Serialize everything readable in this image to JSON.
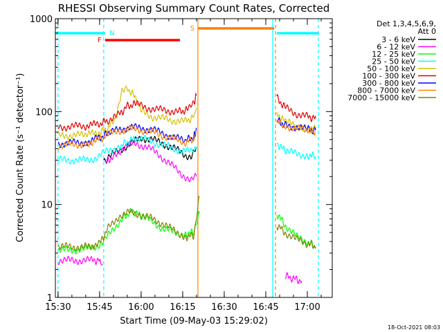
{
  "chart_data": {
    "type": "line",
    "title": "RHESSI Observing Summary Count Rates, Corrected",
    "xlabel": "Start Time (09-May-03 15:29:02)",
    "ylabel": "Corrected Count Rate (s⁻¹ detector⁻¹)",
    "yscale": "log",
    "ylim": [
      1,
      1000
    ],
    "xlim": [
      "15:29:02",
      "17:09:00"
    ],
    "x_tick_labels": [
      "15:30",
      "15:45",
      "16:00",
      "16:15",
      "16:30",
      "16:45",
      "17:00"
    ],
    "x_tick_values": [
      "15:30",
      "15:45",
      "16:00",
      "16:15",
      "16:30",
      "16:45",
      "17:00"
    ],
    "y_tick_labels": [
      "1",
      "10",
      "100",
      "1000"
    ],
    "y_tick_values": [
      1,
      10,
      100,
      1000
    ],
    "legend": {
      "placement": "outside-right",
      "header_lines": [
        "Det 1,3,4,5,6,9,",
        "Att 0"
      ]
    },
    "flags": [
      {
        "label": "N",
        "color": "#00ffff",
        "bars": [
          [
            "15:29:02",
            "15:47:00"
          ],
          [
            "16:49:00",
            "17:04:00"
          ]
        ]
      },
      {
        "label": "F",
        "color": "#ff0000",
        "bars": [
          [
            "15:47:00",
            "16:14:00"
          ]
        ]
      },
      {
        "label": "S",
        "color": "#ff8000",
        "bars": [
          [
            "16:20:30",
            "16:48:00"
          ]
        ]
      }
    ],
    "markers": [
      {
        "time": "15:30:00",
        "color": "#00ffff",
        "style": "dashed"
      },
      {
        "time": "15:46:30",
        "color": "#00ffff",
        "style": "dashed"
      },
      {
        "time": "16:20:30",
        "color": "#ff8000",
        "style": "solid"
      },
      {
        "time": "16:47:30",
        "color": "#00ffff",
        "style": "solid"
      },
      {
        "time": "16:48:30",
        "color": "#ff8000",
        "style": "dashed"
      },
      {
        "time": "17:04:00",
        "color": "#00ffff",
        "style": "dashed"
      }
    ],
    "series": [
      {
        "name": "3 - 6 keV",
        "color": "#000000",
        "segments": [
          [
            [
              "15:46:30",
              28
            ],
            [
              "15:48",
              32
            ],
            [
              "15:52",
              38
            ],
            [
              "15:56",
              45
            ],
            [
              "16:00",
              52
            ],
            [
              "16:04",
              50
            ],
            [
              "16:08",
              45
            ],
            [
              "16:12",
              40
            ],
            [
              "16:16",
              34
            ],
            [
              "16:18",
              33
            ],
            [
              "16:20",
              40
            ]
          ]
        ]
      },
      {
        "name": "6 - 12 keV",
        "color": "#ff00ff",
        "segments": [
          [
            [
              "15:30",
              2.5
            ],
            [
              "15:42",
              2.5
            ],
            [
              "15:45",
              2.5
            ],
            [
              "15:46",
              2.2
            ]
          ],
          [
            [
              "15:47",
              28
            ],
            [
              "15:50",
              33
            ],
            [
              "15:54",
              42
            ],
            [
              "15:58",
              45
            ],
            [
              "16:02",
              42
            ],
            [
              "16:06",
              35
            ],
            [
              "16:10",
              28
            ],
            [
              "16:14",
              22
            ],
            [
              "16:18",
              18
            ],
            [
              "16:20",
              20
            ]
          ],
          [
            [
              "16:52",
              1.7
            ],
            [
              "16:55",
              1.6
            ],
            [
              "16:58",
              1.5
            ]
          ]
        ]
      },
      {
        "name": "12 - 25 keV",
        "color": "#00ff00",
        "segments": [
          [
            [
              "15:30",
              3.2
            ],
            [
              "15:40",
              3.3
            ],
            [
              "15:46",
              3.8
            ],
            [
              "15:50",
              5.5
            ],
            [
              "15:54",
              7.5
            ],
            [
              "15:57",
              8.5
            ],
            [
              "16:00",
              7.5
            ],
            [
              "16:04",
              6.5
            ],
            [
              "16:08",
              5.5
            ],
            [
              "16:12",
              5.0
            ],
            [
              "16:16",
              4.8
            ],
            [
              "16:19",
              5.0
            ],
            [
              "16:21",
              8.0
            ]
          ],
          [
            [
              "16:49",
              8
            ],
            [
              "16:52",
              6
            ],
            [
              "16:56",
              4.5
            ],
            [
              "17:00",
              4.0
            ],
            [
              "17:03",
              3.5
            ]
          ]
        ]
      },
      {
        "name": "25 - 50 keV",
        "color": "#00ffff",
        "segments": [
          [
            [
              "15:30",
              30
            ],
            [
              "15:40",
              30
            ],
            [
              "15:44",
              32
            ],
            [
              "15:48",
              38
            ],
            [
              "15:52",
              42
            ],
            [
              "15:55",
              47
            ],
            [
              "15:58",
              52
            ],
            [
              "16:02",
              50
            ],
            [
              "16:06",
              45
            ],
            [
              "16:10",
              42
            ],
            [
              "16:14",
              38
            ],
            [
              "16:18",
              37
            ],
            [
              "16:20",
              42
            ]
          ],
          [
            [
              "16:49",
              45
            ],
            [
              "16:52",
              38
            ],
            [
              "16:56",
              35
            ],
            [
              "17:00",
              34
            ],
            [
              "17:03",
              33
            ]
          ]
        ]
      },
      {
        "name": "50 - 100 keV",
        "color": "#d4c000",
        "segments": [
          [
            [
              "15:30",
              55
            ],
            [
              "15:40",
              56
            ],
            [
              "15:45",
              60
            ],
            [
              "15:48",
              65
            ],
            [
              "15:51",
              90
            ],
            [
              "15:53",
              175
            ],
            [
              "15:55",
              180
            ],
            [
              "15:58",
              140
            ],
            [
              "16:00",
              100
            ],
            [
              "16:04",
              88
            ],
            [
              "16:08",
              84
            ],
            [
              "16:12",
              80
            ],
            [
              "16:16",
              78
            ],
            [
              "16:19",
              88
            ],
            [
              "16:20",
              110
            ]
          ],
          [
            [
              "16:49",
              95
            ],
            [
              "16:52",
              78
            ],
            [
              "16:56",
              70
            ],
            [
              "17:00",
              66
            ],
            [
              "17:03",
              65
            ]
          ]
        ]
      },
      {
        "name": "100 - 300 keV",
        "color": "#e00000",
        "segments": [
          [
            [
              "15:30",
              68
            ],
            [
              "15:40",
              70
            ],
            [
              "15:45",
              74
            ],
            [
              "15:48",
              80
            ],
            [
              "15:52",
              92
            ],
            [
              "15:55",
              115
            ],
            [
              "15:58",
              120
            ],
            [
              "16:02",
              110
            ],
            [
              "16:06",
              105
            ],
            [
              "16:10",
              102
            ],
            [
              "16:14",
              100
            ],
            [
              "16:17",
              105
            ],
            [
              "16:19",
              120
            ],
            [
              "16:20",
              150
            ]
          ],
          [
            [
              "16:49",
              140
            ],
            [
              "16:52",
              110
            ],
            [
              "16:56",
              95
            ],
            [
              "17:00",
              88
            ],
            [
              "17:03",
              85
            ]
          ]
        ]
      },
      {
        "name": "300 - 800 keV",
        "color": "#0000ff",
        "segments": [
          [
            [
              "15:30",
              45
            ],
            [
              "15:40",
              47
            ],
            [
              "15:45",
              52
            ],
            [
              "15:48",
              58
            ],
            [
              "15:52",
              64
            ],
            [
              "15:56",
              68
            ],
            [
              "16:00",
              66
            ],
            [
              "16:04",
              64
            ],
            [
              "16:08",
              58
            ],
            [
              "16:12",
              52
            ],
            [
              "16:16",
              49
            ],
            [
              "16:19",
              53
            ],
            [
              "16:20",
              65
            ]
          ],
          [
            [
              "16:49",
              80
            ],
            [
              "16:52",
              72
            ],
            [
              "16:56",
              68
            ],
            [
              "17:00",
              64
            ],
            [
              "17:03",
              63
            ]
          ]
        ]
      },
      {
        "name": "800 - 7000 keV",
        "color": "#ff8000",
        "segments": [
          [
            [
              "15:30",
              43
            ],
            [
              "15:40",
              45
            ],
            [
              "15:45",
              50
            ],
            [
              "15:48",
              56
            ],
            [
              "15:52",
              62
            ],
            [
              "15:56",
              65
            ],
            [
              "16:00",
              63
            ],
            [
              "16:04",
              60
            ],
            [
              "16:08",
              55
            ],
            [
              "16:12",
              50
            ],
            [
              "16:16",
              47
            ],
            [
              "16:19",
              50
            ],
            [
              "16:20",
              62
            ]
          ],
          [
            [
              "16:49",
              78
            ],
            [
              "16:52",
              70
            ],
            [
              "16:56",
              66
            ],
            [
              "17:00",
              62
            ],
            [
              "17:03",
              61
            ]
          ]
        ]
      },
      {
        "name": "7000 - 15000 keV",
        "color": "#808000",
        "segments": [
          [
            [
              "15:30",
              3.5
            ],
            [
              "15:40",
              3.5
            ],
            [
              "15:45",
              3.8
            ],
            [
              "15:48",
              5.5
            ],
            [
              "15:52",
              7.5
            ],
            [
              "15:56",
              8.2
            ],
            [
              "16:00",
              7.8
            ],
            [
              "16:04",
              7.0
            ],
            [
              "16:08",
              6.2
            ],
            [
              "16:12",
              5.2
            ],
            [
              "16:16",
              4.5
            ],
            [
              "16:19",
              4.6
            ],
            [
              "16:21",
              12
            ]
          ],
          [
            [
              "16:49",
              6
            ],
            [
              "16:52",
              5
            ],
            [
              "16:56",
              4.2
            ],
            [
              "17:00",
              3.8
            ],
            [
              "17:03",
              3.5
            ]
          ]
        ]
      }
    ]
  },
  "footer": {
    "timestamp": "18-Oct-2021 08:03"
  }
}
